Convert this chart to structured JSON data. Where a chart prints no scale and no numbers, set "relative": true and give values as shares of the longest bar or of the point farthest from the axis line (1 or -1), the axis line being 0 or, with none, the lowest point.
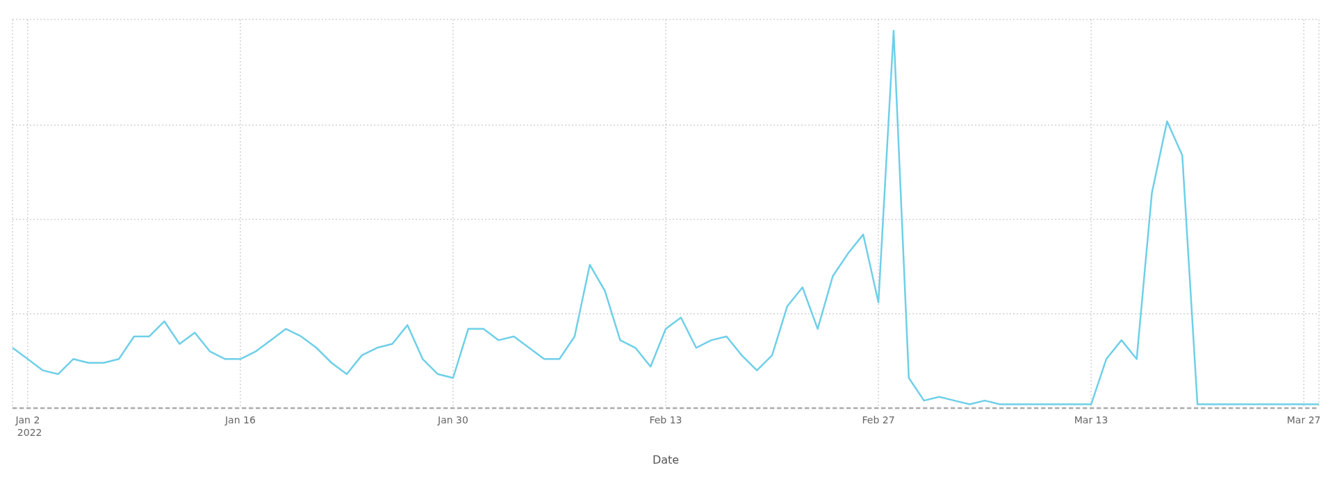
{
  "chart_data": {
    "type": "line",
    "xlabel": "Date",
    "relative": true,
    "grid": true,
    "marker": "none",
    "line_style": "solid",
    "xlim": [
      "2022-01-01",
      "2022-03-28"
    ],
    "xticks": [
      {
        "value": "2022-01-02",
        "label": "Jan 2\n2022"
      },
      {
        "value": "2022-01-16",
        "label": "Jan 16"
      },
      {
        "value": "2022-01-30",
        "label": "Jan 30"
      },
      {
        "value": "2022-02-13",
        "label": "Feb 13"
      },
      {
        "value": "2022-02-27",
        "label": "Feb 27"
      },
      {
        "value": "2022-03-13",
        "label": "Mar 13"
      },
      {
        "value": "2022-03-27",
        "label": "Mar 27"
      }
    ],
    "ref_lines": [
      {
        "axis": "y",
        "value": 0,
        "color": "#aaaaaa",
        "line_style": "dashed"
      }
    ],
    "x": [
      "2022-01-01",
      "2022-01-02",
      "2022-01-03",
      "2022-01-04",
      "2022-01-05",
      "2022-01-06",
      "2022-01-07",
      "2022-01-08",
      "2022-01-09",
      "2022-01-10",
      "2022-01-11",
      "2022-01-12",
      "2022-01-13",
      "2022-01-14",
      "2022-01-15",
      "2022-01-16",
      "2022-01-17",
      "2022-01-18",
      "2022-01-19",
      "2022-01-20",
      "2022-01-21",
      "2022-01-22",
      "2022-01-23",
      "2022-01-24",
      "2022-01-25",
      "2022-01-26",
      "2022-01-27",
      "2022-01-28",
      "2022-01-29",
      "2022-01-30",
      "2022-01-31",
      "2022-02-01",
      "2022-02-02",
      "2022-02-03",
      "2022-02-04",
      "2022-02-05",
      "2022-02-06",
      "2022-02-07",
      "2022-02-08",
      "2022-02-09",
      "2022-02-10",
      "2022-02-11",
      "2022-02-12",
      "2022-02-13",
      "2022-02-14",
      "2022-02-15",
      "2022-02-16",
      "2022-02-17",
      "2022-02-18",
      "2022-02-19",
      "2022-02-20",
      "2022-02-21",
      "2022-02-22",
      "2022-02-23",
      "2022-02-24",
      "2022-02-25",
      "2022-02-26",
      "2022-02-27",
      "2022-02-28",
      "2022-03-01",
      "2022-03-02",
      "2022-03-03",
      "2022-03-04",
      "2022-03-05",
      "2022-03-06",
      "2022-03-07",
      "2022-03-08",
      "2022-03-09",
      "2022-03-10",
      "2022-03-11",
      "2022-03-12",
      "2022-03-13",
      "2022-03-14",
      "2022-03-15",
      "2022-03-16",
      "2022-03-17",
      "2022-03-18",
      "2022-03-19",
      "2022-03-20",
      "2022-03-21",
      "2022-03-22",
      "2022-03-23",
      "2022-03-24",
      "2022-03-25",
      "2022-03-26",
      "2022-03-27",
      "2022-03-28"
    ],
    "series": [
      {
        "color": "#6ecfe8",
        "values": [
          0.16,
          0.13,
          0.1,
          0.09,
          0.13,
          0.12,
          0.12,
          0.13,
          0.19,
          0.19,
          0.23,
          0.17,
          0.2,
          0.15,
          0.13,
          0.13,
          0.15,
          0.18,
          0.21,
          0.19,
          0.16,
          0.12,
          0.09,
          0.14,
          0.16,
          0.17,
          0.22,
          0.13,
          0.09,
          0.08,
          0.21,
          0.21,
          0.18,
          0.19,
          0.16,
          0.13,
          0.13,
          0.19,
          0.38,
          0.31,
          0.18,
          0.16,
          0.11,
          0.21,
          0.24,
          0.16,
          0.18,
          0.19,
          0.14,
          0.1,
          0.14,
          0.27,
          0.32,
          0.21,
          0.35,
          0.41,
          0.46,
          0.28,
          1,
          0.08,
          0.02,
          0.03,
          0.02,
          0.01,
          0.02,
          0.01,
          0.01,
          0.01,
          0.01,
          0.01,
          0.01,
          0.01,
          0.13,
          0.18,
          0.13,
          0.57,
          0.76,
          0.67,
          0.01,
          0.01,
          0.01,
          0.01,
          0.01,
          0.01,
          0.01,
          0.01,
          0.01
        ]
      }
    ]
  }
}
